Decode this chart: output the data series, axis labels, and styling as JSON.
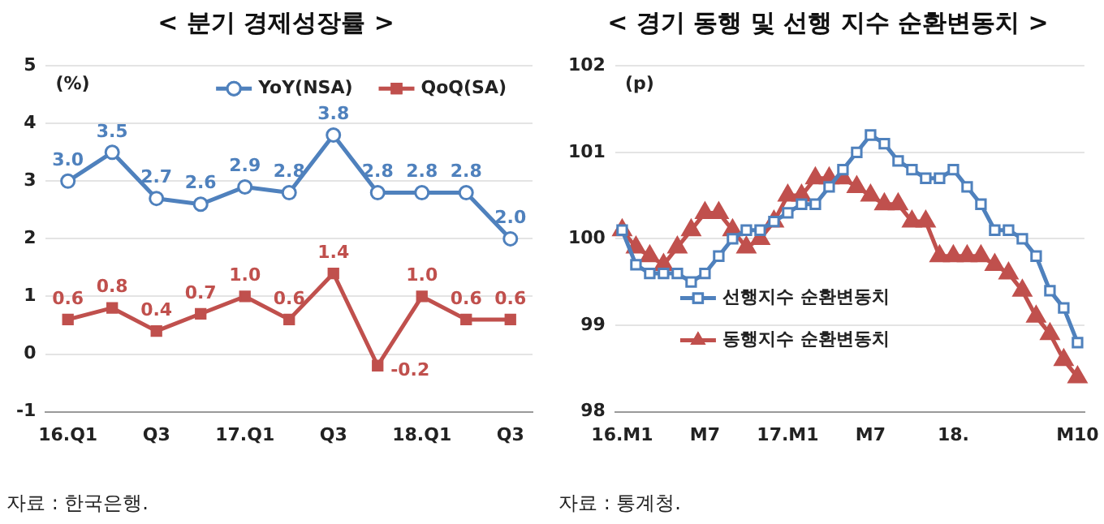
{
  "chart_data": [
    {
      "type": "line",
      "title": "< 분기 경제성장률 >",
      "ylabel": "(%)",
      "categories": [
        "16.Q1",
        null,
        "Q3",
        null,
        "17.Q1",
        null,
        "Q3",
        null,
        "18.Q1",
        null,
        "Q3"
      ],
      "series": [
        {
          "name": "YoY(NSA)",
          "color": "#4f81bd",
          "marker": "circle",
          "values": [
            3.0,
            3.5,
            2.7,
            2.6,
            2.9,
            2.8,
            3.8,
            2.8,
            2.8,
            2.8,
            2.0
          ],
          "value_labels": [
            "3.0",
            "3.5",
            "2.7",
            "2.6",
            "2.9",
            "2.8",
            "3.8",
            "2.8",
            "2.8",
            "2.8",
            "2.0"
          ]
        },
        {
          "name": "QoQ(SA)",
          "color": "#c0504d",
          "marker": "square",
          "values": [
            0.6,
            0.8,
            0.4,
            0.7,
            1.0,
            0.6,
            1.4,
            -0.2,
            1.0,
            0.6,
            0.6
          ],
          "value_labels": [
            "0.6",
            "0.8",
            "0.4",
            "0.7",
            "1.0",
            "0.6",
            "1.4",
            "-0.2",
            "1.0",
            "0.6",
            "0.6"
          ]
        }
      ],
      "ylim": [
        -1,
        5
      ],
      "yticks": [
        -1,
        0,
        1,
        2,
        3,
        4,
        5
      ],
      "grid": "y",
      "legend": "top right",
      "annotations": [
        "자료 : 한국은행."
      ]
    },
    {
      "type": "line",
      "title": "< 경기 동행 및 선행 지수 순환변동치 >",
      "ylabel": "(p)",
      "categories": [
        "16.M1",
        null,
        null,
        null,
        null,
        null,
        "M7",
        null,
        null,
        null,
        null,
        null,
        "17.M1",
        null,
        null,
        null,
        null,
        null,
        "M7",
        null,
        null,
        null,
        null,
        null,
        "18.",
        null,
        null,
        null,
        null,
        null,
        null,
        null,
        null,
        "M10"
      ],
      "series": [
        {
          "name": "선행지수 순환변동치",
          "color": "#4f81bd",
          "marker": "square",
          "values": [
            100.1,
            99.7,
            99.6,
            99.6,
            99.6,
            99.5,
            99.6,
            99.8,
            100.0,
            100.1,
            100.1,
            100.2,
            100.3,
            100.4,
            100.4,
            100.6,
            100.8,
            101.0,
            101.2,
            101.1,
            100.9,
            100.8,
            100.7,
            100.7,
            100.8,
            100.6,
            100.4,
            100.1,
            100.1,
            100.0,
            99.8,
            99.4,
            99.2,
            98.8
          ]
        },
        {
          "name": "동행지수 순환변동치",
          "color": "#c0504d",
          "marker": "triangle",
          "values": [
            100.1,
            99.9,
            99.8,
            99.7,
            99.9,
            100.1,
            100.3,
            100.3,
            100.1,
            99.9,
            100.0,
            100.2,
            100.5,
            100.5,
            100.7,
            100.7,
            100.7,
            100.6,
            100.5,
            100.4,
            100.4,
            100.2,
            100.2,
            99.8,
            99.8,
            99.8,
            99.8,
            99.7,
            99.6,
            99.4,
            99.1,
            98.9,
            98.6,
            98.4
          ]
        }
      ],
      "ylim": [
        98,
        102
      ],
      "yticks": [
        98,
        99,
        100,
        101,
        102
      ],
      "grid": "y",
      "legend": "bottom left",
      "annotations": [
        "자료 : 통계청."
      ]
    }
  ]
}
